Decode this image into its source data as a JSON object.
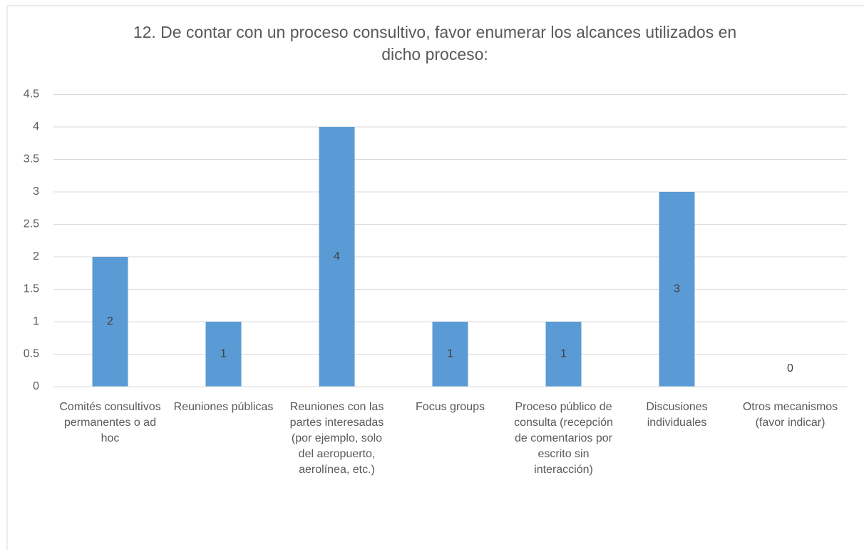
{
  "chart_data": {
    "type": "bar",
    "title": "12.  De contar con un proceso consultivo, favor enumerar los alcances utilizados en dicho proceso:",
    "categories": [
      "Comités consultivos permanentes o ad hoc",
      "Reuniones públicas",
      "Reuniones con las partes interesadas (por ejemplo, solo del aeropuerto, aerolínea, etc.)",
      "Focus groups",
      "Proceso público de consulta (recepción de comentarios por escrito sin interacción)",
      "Discusiones individuales",
      "Otros mecanismos (favor indicar)"
    ],
    "values": [
      2,
      1,
      4,
      1,
      1,
      3,
      0
    ],
    "color": "#5b9bd5",
    "ylim": [
      0,
      4.5
    ],
    "yticks": [
      0,
      0.5,
      1,
      1.5,
      2,
      2.5,
      3,
      3.5,
      4,
      4.5
    ],
    "grid": true
  }
}
